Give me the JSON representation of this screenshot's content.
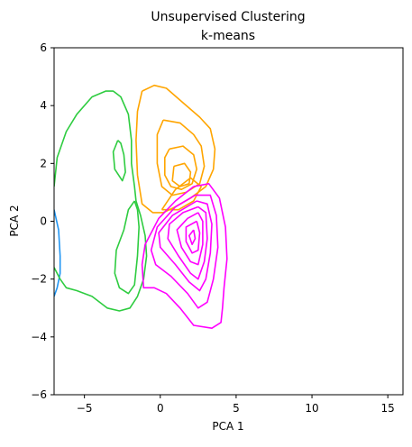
{
  "chart_data": {
    "type": "density-contour",
    "title": "Unsupervised Clustering",
    "subtitle": "k-means",
    "xlabel": "PCA 1",
    "ylabel": "PCA 2",
    "xlim": [
      -7,
      16
    ],
    "ylim": [
      -6,
      6
    ],
    "xticks": [
      "−5",
      "0",
      "5",
      "10",
      "15"
    ],
    "xtick_values": [
      -5,
      0,
      5,
      10,
      15
    ],
    "yticks": [
      "−6",
      "−4",
      "−2",
      "0",
      "2",
      "4",
      "6"
    ],
    "ytick_values": [
      -6,
      -4,
      -2,
      0,
      2,
      4,
      6
    ],
    "grid": false,
    "series": [
      {
        "color": "#2196f3",
        "contours": [
          [
            [
              -7.0,
              0.4
            ],
            [
              -6.7,
              -0.3
            ],
            [
              -6.6,
              -1.2
            ],
            [
              -6.6,
              -1.8
            ],
            [
              -6.8,
              -2.3
            ],
            [
              -7.0,
              -2.6
            ]
          ]
        ]
      },
      {
        "color": "#2ecc40",
        "contours": [
          [
            [
              -7.0,
              1.2
            ],
            [
              -6.8,
              2.2
            ],
            [
              -6.2,
              3.1
            ],
            [
              -5.5,
              3.7
            ],
            [
              -4.5,
              4.3
            ],
            [
              -3.6,
              4.5
            ],
            [
              -3.1,
              4.5
            ],
            [
              -2.6,
              4.3
            ],
            [
              -2.1,
              3.7
            ],
            [
              -1.9,
              2.8
            ],
            [
              -1.9,
              2.0
            ],
            [
              -1.7,
              1.2
            ],
            [
              -1.6,
              0.7
            ],
            [
              -1.3,
              0.2
            ],
            [
              -1.0,
              -0.5
            ],
            [
              -0.9,
              -1.2
            ],
            [
              -1.1,
              -2.0
            ],
            [
              -1.5,
              -2.6
            ],
            [
              -2.0,
              -3.0
            ],
            [
              -2.7,
              -3.1
            ],
            [
              -3.5,
              -3.0
            ],
            [
              -4.5,
              -2.6
            ],
            [
              -5.5,
              -2.4
            ],
            [
              -6.2,
              -2.3
            ],
            [
              -6.6,
              -2.0
            ],
            [
              -7.0,
              -1.6
            ]
          ],
          [
            [
              -2.8,
              2.8
            ],
            [
              -3.1,
              2.4
            ],
            [
              -3.0,
              1.8
            ],
            [
              -2.5,
              1.4
            ],
            [
              -2.3,
              1.7
            ],
            [
              -2.4,
              2.3
            ],
            [
              -2.6,
              2.7
            ],
            [
              -2.8,
              2.8
            ]
          ],
          [
            [
              -1.7,
              0.7
            ],
            [
              -2.1,
              0.4
            ],
            [
              -2.4,
              -0.3
            ],
            [
              -2.9,
              -1.0
            ],
            [
              -3.0,
              -1.8
            ],
            [
              -2.7,
              -2.3
            ],
            [
              -2.1,
              -2.5
            ],
            [
              -1.7,
              -2.2
            ],
            [
              -1.5,
              -1.2
            ],
            [
              -1.4,
              -0.2
            ],
            [
              -1.5,
              0.4
            ],
            [
              -1.7,
              0.7
            ]
          ]
        ]
      },
      {
        "color": "#ffa500",
        "contours": [
          [
            [
              -1.2,
              4.5
            ],
            [
              -0.4,
              4.7
            ],
            [
              0.4,
              4.6
            ],
            [
              1.5,
              4.1
            ],
            [
              2.6,
              3.6
            ],
            [
              3.3,
              3.2
            ],
            [
              3.6,
              2.5
            ],
            [
              3.5,
              1.8
            ],
            [
              3.0,
              1.2
            ],
            [
              2.0,
              0.8
            ],
            [
              1.0,
              0.5
            ],
            [
              0.2,
              0.3
            ],
            [
              -0.5,
              0.3
            ],
            [
              -1.2,
              0.6
            ],
            [
              -1.5,
              1.6
            ],
            [
              -1.6,
              2.8
            ],
            [
              -1.5,
              3.8
            ],
            [
              -1.2,
              4.5
            ]
          ],
          [
            [
              0.2,
              3.5
            ],
            [
              1.3,
              3.4
            ],
            [
              2.2,
              3.0
            ],
            [
              2.7,
              2.6
            ],
            [
              2.9,
              1.9
            ],
            [
              2.6,
              1.3
            ],
            [
              1.7,
              1.0
            ],
            [
              0.8,
              0.9
            ],
            [
              0.1,
              1.2
            ],
            [
              -0.2,
              2.0
            ],
            [
              -0.2,
              3.0
            ],
            [
              0.2,
              3.5
            ]
          ],
          [
            [
              0.6,
              2.5
            ],
            [
              1.5,
              2.6
            ],
            [
              2.2,
              2.3
            ],
            [
              2.4,
              1.8
            ],
            [
              2.1,
              1.3
            ],
            [
              1.4,
              1.1
            ],
            [
              0.7,
              1.2
            ],
            [
              0.3,
              1.6
            ],
            [
              0.3,
              2.2
            ],
            [
              0.6,
              2.5
            ]
          ],
          [
            [
              0.9,
              1.9
            ],
            [
              1.6,
              2.0
            ],
            [
              2.0,
              1.7
            ],
            [
              1.9,
              1.3
            ],
            [
              1.3,
              1.2
            ],
            [
              0.8,
              1.4
            ],
            [
              0.9,
              1.9
            ]
          ],
          [
            [
              0.1,
              0.4
            ],
            [
              1.0,
              1.1
            ],
            [
              2.0,
              1.5
            ],
            [
              2.7,
              1.2
            ],
            [
              2.2,
              0.7
            ],
            [
              1.2,
              0.4
            ],
            [
              0.1,
              0.4
            ]
          ]
        ]
      },
      {
        "color": "#ff00ff",
        "contours": [
          [
            [
              2.2,
              1.2
            ],
            [
              3.2,
              1.3
            ],
            [
              3.9,
              0.8
            ],
            [
              4.3,
              -0.2
            ],
            [
              4.4,
              -1.3
            ],
            [
              4.2,
              -2.3
            ],
            [
              4.1,
              -3.0
            ],
            [
              4.0,
              -3.5
            ],
            [
              3.4,
              -3.7
            ],
            [
              2.2,
              -3.6
            ],
            [
              1.3,
              -3.0
            ],
            [
              0.4,
              -2.5
            ],
            [
              -0.4,
              -2.3
            ],
            [
              -1.1,
              -2.3
            ],
            [
              -1.2,
              -1.5
            ],
            [
              -1.0,
              -0.8
            ],
            [
              -0.1,
              0.1
            ],
            [
              1.0,
              0.7
            ],
            [
              2.2,
              1.2
            ]
          ],
          [
            [
              2.3,
              0.9
            ],
            [
              3.3,
              0.9
            ],
            [
              3.7,
              0.2
            ],
            [
              3.8,
              -0.9
            ],
            [
              3.5,
              -2.0
            ],
            [
              3.1,
              -2.8
            ],
            [
              2.5,
              -3.0
            ],
            [
              1.8,
              -2.5
            ],
            [
              0.7,
              -1.9
            ],
            [
              -0.3,
              -1.5
            ],
            [
              -0.6,
              -1.0
            ],
            [
              -0.2,
              -0.2
            ],
            [
              1.0,
              0.5
            ],
            [
              2.3,
              0.9
            ]
          ],
          [
            [
              2.4,
              0.7
            ],
            [
              3.1,
              0.6
            ],
            [
              3.4,
              -0.1
            ],
            [
              3.3,
              -1.1
            ],
            [
              3.0,
              -2.0
            ],
            [
              2.6,
              -2.4
            ],
            [
              1.9,
              -2.1
            ],
            [
              1.0,
              -1.5
            ],
            [
              0.0,
              -0.9
            ],
            [
              -0.1,
              -0.4
            ],
            [
              0.8,
              0.2
            ],
            [
              2.4,
              0.7
            ]
          ],
          [
            [
              2.5,
              0.5
            ],
            [
              3.0,
              0.3
            ],
            [
              3.1,
              -0.6
            ],
            [
              2.9,
              -1.4
            ],
            [
              2.5,
              -2.0
            ],
            [
              2.0,
              -1.8
            ],
            [
              1.2,
              -1.2
            ],
            [
              0.5,
              -0.6
            ],
            [
              0.6,
              -0.1
            ],
            [
              1.5,
              0.3
            ],
            [
              2.5,
              0.5
            ]
          ],
          [
            [
              2.5,
              0.3
            ],
            [
              2.8,
              0.0
            ],
            [
              2.8,
              -0.8
            ],
            [
              2.5,
              -1.5
            ],
            [
              2.0,
              -1.4
            ],
            [
              1.4,
              -0.9
            ],
            [
              1.1,
              -0.3
            ],
            [
              1.8,
              0.1
            ],
            [
              2.5,
              0.3
            ]
          ],
          [
            [
              2.4,
              0.0
            ],
            [
              2.6,
              -0.4
            ],
            [
              2.5,
              -1.0
            ],
            [
              2.1,
              -1.1
            ],
            [
              1.7,
              -0.7
            ],
            [
              1.7,
              -0.2
            ],
            [
              2.4,
              0.0
            ]
          ],
          [
            [
              2.2,
              -0.3
            ],
            [
              2.3,
              -0.6
            ],
            [
              2.1,
              -0.8
            ],
            [
              1.9,
              -0.5
            ],
            [
              2.2,
              -0.3
            ]
          ]
        ]
      }
    ]
  }
}
